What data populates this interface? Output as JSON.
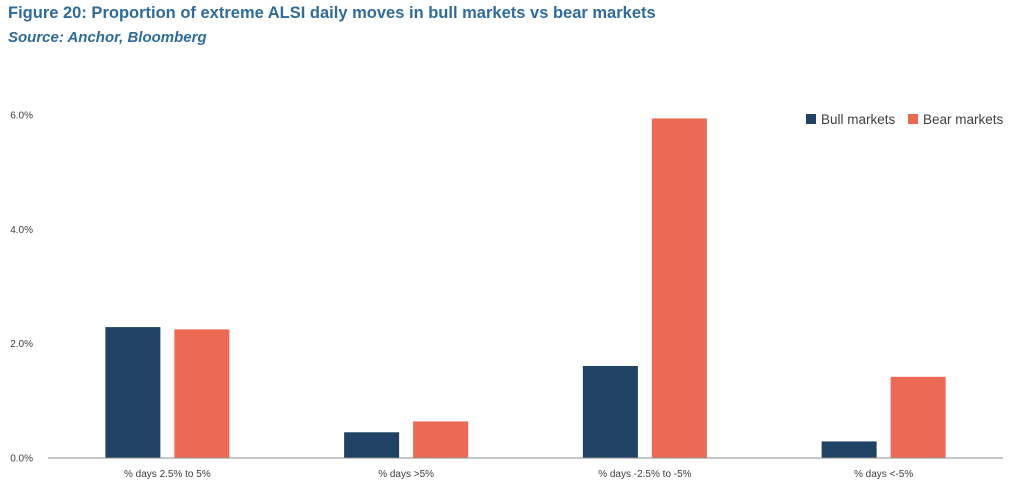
{
  "header": {
    "title": "Figure 20: Proportion of extreme ALSI daily moves in bull markets vs bear markets",
    "subtitle": "Source: Anchor, Bloomberg"
  },
  "colors": {
    "bull": "#1f4265",
    "bear": "#ec6a53",
    "axis": "#8c8c8c",
    "text": "#404040",
    "title": "#2e6b9e"
  },
  "chart_data": {
    "type": "bar",
    "title": "Figure 20: Proportion of extreme ALSI daily moves in bull markets vs bear markets",
    "categories": [
      "% days 2.5% to 5%",
      "% days >5%",
      "% days -2.5% to -5%",
      "% days <-5%"
    ],
    "series": [
      {
        "name": "Bull markets",
        "values": [
          2.29,
          0.45,
          1.61,
          0.29
        ]
      },
      {
        "name": "Bear markets",
        "values": [
          2.25,
          0.64,
          5.94,
          1.42
        ]
      }
    ],
    "y_ticks": [
      "0.0%",
      "2.0%",
      "4.0%",
      "6.0%"
    ],
    "ylim": [
      0,
      6
    ],
    "xlabel": "",
    "ylabel": "",
    "grid": false,
    "legend_position": "top-right"
  }
}
